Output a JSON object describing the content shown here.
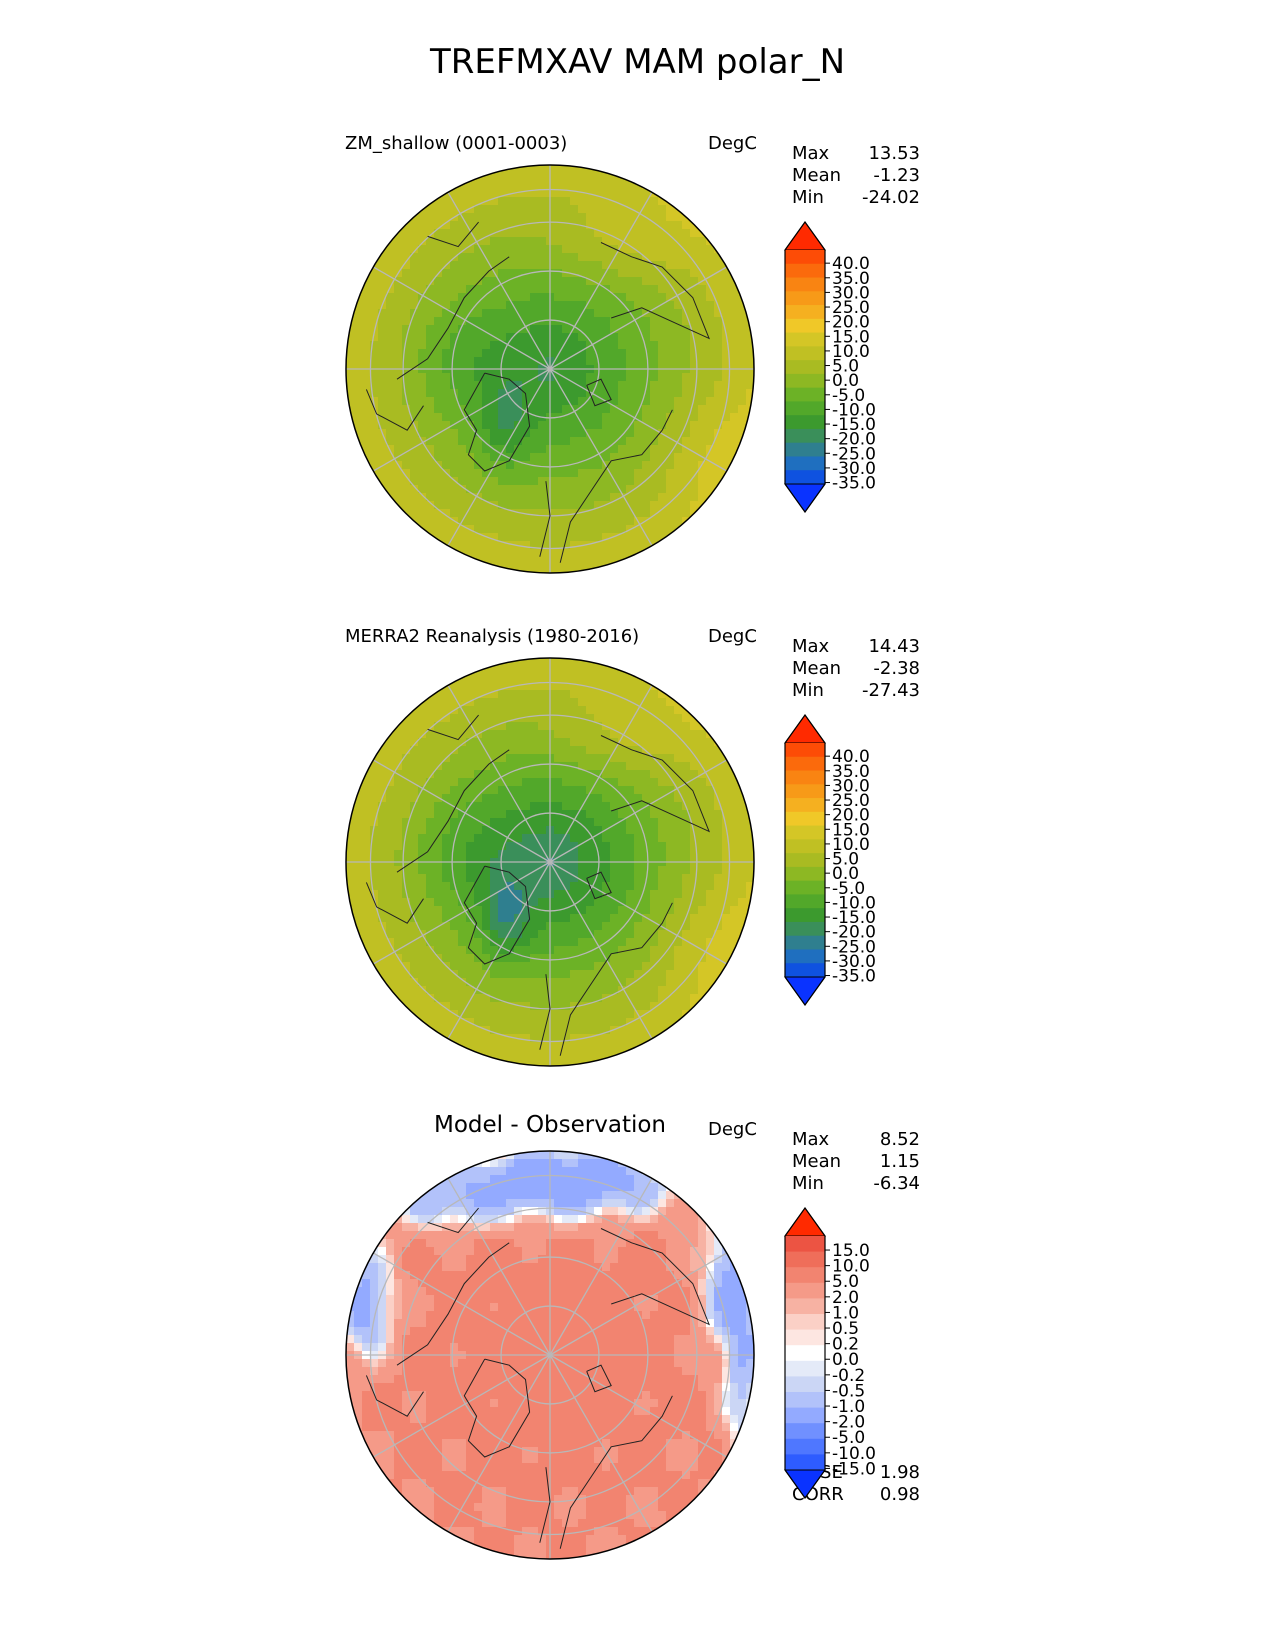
{
  "figure": {
    "title": "TREFMXAV MAM polar_N"
  },
  "panels": [
    {
      "title": "ZM_shallow (0001-0003)",
      "units": "DegC",
      "stats": [
        {
          "label": "Max",
          "value": "13.53"
        },
        {
          "label": "Mean",
          "value": "-1.23"
        },
        {
          "label": "Min",
          "value": "-24.02"
        }
      ]
    },
    {
      "title": "MERRA2 Reanalysis (1980-2016)",
      "units": "DegC",
      "stats": [
        {
          "label": "Max",
          "value": "14.43"
        },
        {
          "label": "Mean",
          "value": "-2.38"
        },
        {
          "label": "Min",
          "value": "-27.43"
        }
      ]
    },
    {
      "title": "Model - Observation",
      "units": "DegC",
      "stats": [
        {
          "label": "Max",
          "value": "8.52"
        },
        {
          "label": "Mean",
          "value": "1.15"
        },
        {
          "label": "Min",
          "value": "-6.34"
        }
      ],
      "extra_stats": [
        {
          "label": "RMSE",
          "value": "1.98"
        },
        {
          "label": "CORR",
          "value": "0.98"
        }
      ]
    }
  ],
  "colors": {
    "temp_scale": [
      "#0a33ff",
      "#0f52e0",
      "#1f6fbf",
      "#2f7f8f",
      "#3a8f5a",
      "#3c9a2e",
      "#52a82a",
      "#6cb226",
      "#8db823",
      "#a9bb22",
      "#c0c023",
      "#d4c626",
      "#f0c828",
      "#f5b020",
      "#f79a18",
      "#f98412",
      "#fb6a0c",
      "#fd4c06",
      "#ff2a00"
    ],
    "diff_scale": [
      "#0a33ff",
      "#2e5cff",
      "#4f77ff",
      "#7090ff",
      "#93aaff",
      "#b2c2fa",
      "#cbd6f5",
      "#e4eaf8",
      "#ffffff",
      "#fde6e1",
      "#fbd0c6",
      "#f7b2a3",
      "#f59a88",
      "#f28470",
      "#ef6e5a",
      "#ec5443",
      "#ff2a00"
    ]
  },
  "chart_data": [
    {
      "type": "heatmap",
      "title": "ZM_shallow (0001-0003)",
      "units": "DegC",
      "projection": "north polar stereographic",
      "colorbar_ticks": [
        "40.0",
        "35.0",
        "30.0",
        "25.0",
        "20.0",
        "15.0",
        "10.0",
        "5.0",
        "0.0",
        "-5.0",
        "-10.0",
        "-15.0",
        "-20.0",
        "-25.0",
        "-30.0",
        "-35.0"
      ],
      "colorbar_range": [
        -40,
        45
      ],
      "stats": {
        "max": 13.53,
        "mean": -1.23,
        "min": -24.02
      }
    },
    {
      "type": "heatmap",
      "title": "MERRA2 Reanalysis (1980-2016)",
      "units": "DegC",
      "projection": "north polar stereographic",
      "colorbar_ticks": [
        "40.0",
        "35.0",
        "30.0",
        "25.0",
        "20.0",
        "15.0",
        "10.0",
        "5.0",
        "0.0",
        "-5.0",
        "-10.0",
        "-15.0",
        "-20.0",
        "-25.0",
        "-30.0",
        "-35.0"
      ],
      "colorbar_range": [
        -40,
        45
      ],
      "stats": {
        "max": 14.43,
        "mean": -2.38,
        "min": -27.43
      }
    },
    {
      "type": "heatmap",
      "title": "Model - Observation",
      "units": "DegC",
      "projection": "north polar stereographic",
      "colorbar_ticks": [
        "15.0",
        "10.0",
        "5.0",
        "2.0",
        "1.0",
        "0.5",
        "0.2",
        "0.0",
        "-0.2",
        "-0.5",
        "-1.0",
        "-2.0",
        "-5.0",
        "-10.0",
        "-15.0"
      ],
      "stats": {
        "max": 8.52,
        "mean": 1.15,
        "min": -6.34,
        "rmse": 1.98,
        "corr": 0.98
      }
    }
  ]
}
